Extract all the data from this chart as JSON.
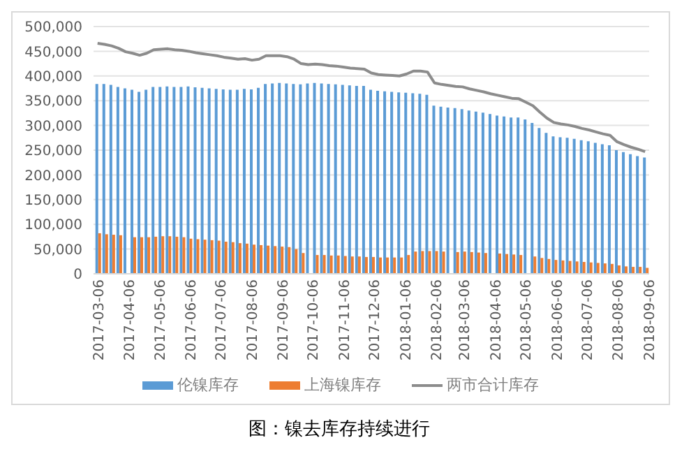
{
  "chart_data": {
    "type": "bar",
    "title": "图：镍去库存持续进行",
    "x": [
      "2017-03-06",
      "2017-03-13",
      "2017-03-20",
      "2017-03-27",
      "2017-04-03",
      "2017-04-10",
      "2017-04-17",
      "2017-04-24",
      "2017-05-01",
      "2017-05-08",
      "2017-05-15",
      "2017-05-22",
      "2017-05-29",
      "2017-06-05",
      "2017-06-12",
      "2017-06-19",
      "2017-06-26",
      "2017-07-03",
      "2017-07-10",
      "2017-07-17",
      "2017-07-24",
      "2017-07-31",
      "2017-08-07",
      "2017-08-14",
      "2017-08-21",
      "2017-08-28",
      "2017-09-04",
      "2017-09-11",
      "2017-09-18",
      "2017-09-25",
      "2017-10-02",
      "2017-10-09",
      "2017-10-16",
      "2017-10-23",
      "2017-10-30",
      "2017-11-06",
      "2017-11-13",
      "2017-11-20",
      "2017-11-27",
      "2017-12-04",
      "2017-12-11",
      "2017-12-18",
      "2017-12-25",
      "2018-01-01",
      "2018-01-08",
      "2018-01-15",
      "2018-01-22",
      "2018-01-29",
      "2018-02-05",
      "2018-02-12",
      "2018-02-19",
      "2018-02-26",
      "2018-03-05",
      "2018-03-12",
      "2018-03-19",
      "2018-03-26",
      "2018-04-02",
      "2018-04-09",
      "2018-04-16",
      "2018-04-23",
      "2018-04-30",
      "2018-05-07",
      "2018-05-14",
      "2018-05-21",
      "2018-05-28",
      "2018-06-04",
      "2018-06-11",
      "2018-06-18",
      "2018-06-25",
      "2018-07-02",
      "2018-07-09",
      "2018-07-16",
      "2018-07-23",
      "2018-07-30",
      "2018-08-06",
      "2018-08-13",
      "2018-08-20",
      "2018-08-27",
      "2018-09-03"
    ],
    "series": [
      {
        "name": "伦镍库存",
        "color": "#5b9bd5",
        "values": [
          384000,
          384000,
          382000,
          378000,
          375000,
          372000,
          368000,
          372000,
          378000,
          378000,
          379000,
          378000,
          378000,
          379000,
          377000,
          376000,
          375000,
          374000,
          373000,
          372000,
          372000,
          374000,
          373000,
          376000,
          384000,
          385000,
          386000,
          385000,
          384000,
          383000,
          385000,
          386000,
          385000,
          384000,
          383000,
          382000,
          381000,
          380000,
          380000,
          372000,
          370000,
          369000,
          368000,
          367000,
          366000,
          365000,
          364000,
          362000,
          340000,
          338000,
          336000,
          335000,
          333000,
          330000,
          328000,
          326000,
          323000,
          320000,
          318000,
          316000,
          316000,
          312000,
          305000,
          295000,
          285000,
          278000,
          276000,
          275000,
          273000,
          270000,
          268000,
          265000,
          262000,
          260000,
          250000,
          246000,
          242000,
          238000,
          235000
        ]
      },
      {
        "name": "上海镍库存",
        "color": "#ed7d31",
        "values": [
          82000,
          80000,
          79000,
          78000,
          null,
          74000,
          74000,
          74000,
          75000,
          76000,
          76000,
          75000,
          74000,
          71000,
          70000,
          69000,
          68000,
          67000,
          65000,
          64000,
          62000,
          61000,
          59000,
          58000,
          57000,
          56000,
          55000,
          54000,
          50000,
          42000,
          null,
          38000,
          38000,
          37000,
          37000,
          36000,
          35000,
          35000,
          34000,
          34000,
          33000,
          33000,
          33000,
          33000,
          38000,
          45000,
          46000,
          46000,
          46000,
          45000,
          null,
          44000,
          45000,
          44000,
          43000,
          42000,
          null,
          41000,
          40000,
          39000,
          38000,
          null,
          35000,
          32000,
          30000,
          28000,
          27000,
          26000,
          25000,
          24000,
          23000,
          22000,
          21000,
          20000,
          17000,
          15000,
          14000,
          14000,
          12000
        ]
      },
      {
        "name": "两市合计库存",
        "type": "line",
        "color": "#8c8c8c",
        "values": [
          466000,
          464000,
          461000,
          456000,
          449000,
          446000,
          442000,
          446000,
          453000,
          454000,
          455000,
          453000,
          452000,
          450000,
          447000,
          445000,
          443000,
          441000,
          438000,
          436000,
          434000,
          435000,
          432000,
          434000,
          441000,
          441000,
          441000,
          439000,
          434000,
          425000,
          423000,
          424000,
          423000,
          421000,
          420000,
          418000,
          416000,
          415000,
          414000,
          406000,
          403000,
          402000,
          401000,
          400000,
          404000,
          410000,
          410000,
          408000,
          386000,
          383000,
          381000,
          379000,
          378000,
          374000,
          371000,
          368000,
          364000,
          361000,
          358000,
          355000,
          354000,
          347000,
          340000,
          327000,
          315000,
          306000,
          303000,
          301000,
          298000,
          294000,
          291000,
          287000,
          283000,
          280000,
          267000,
          261000,
          256000,
          252000,
          247000
        ]
      }
    ],
    "xlim": [
      "2017-03-02",
      "2018-09-07"
    ],
    "xticks": [
      "2017-03-06",
      "2017-04-06",
      "2017-05-06",
      "2017-06-06",
      "2017-07-06",
      "2017-08-06",
      "2017-09-06",
      "2017-10-06",
      "2017-11-06",
      "2017-12-06",
      "2018-01-06",
      "2018-02-06",
      "2018-03-06",
      "2018-04-06",
      "2018-05-06",
      "2018-06-06",
      "2018-07-06",
      "2018-08-06",
      "2018-09-06"
    ],
    "ylim": [
      0,
      500000
    ],
    "yticks": [
      0,
      {
        "value": 50000,
        "label": "50,000"
      },
      {
        "value": 100000,
        "label": "100,000"
      },
      {
        "value": 150000,
        "label": "150,000"
      },
      {
        "value": 200000,
        "label": "200,000"
      },
      {
        "value": 250000,
        "label": "250,000"
      },
      {
        "value": 300000,
        "label": "300,000"
      },
      {
        "value": 350000,
        "label": "350,000"
      },
      {
        "value": 400000,
        "label": "400,000"
      },
      {
        "value": 450000,
        "label": "450,000"
      },
      {
        "value": 500000,
        "label": "500,000"
      }
    ],
    "grid": "y",
    "legend": "bottom",
    "marker": "none",
    "line_style": "solid"
  }
}
